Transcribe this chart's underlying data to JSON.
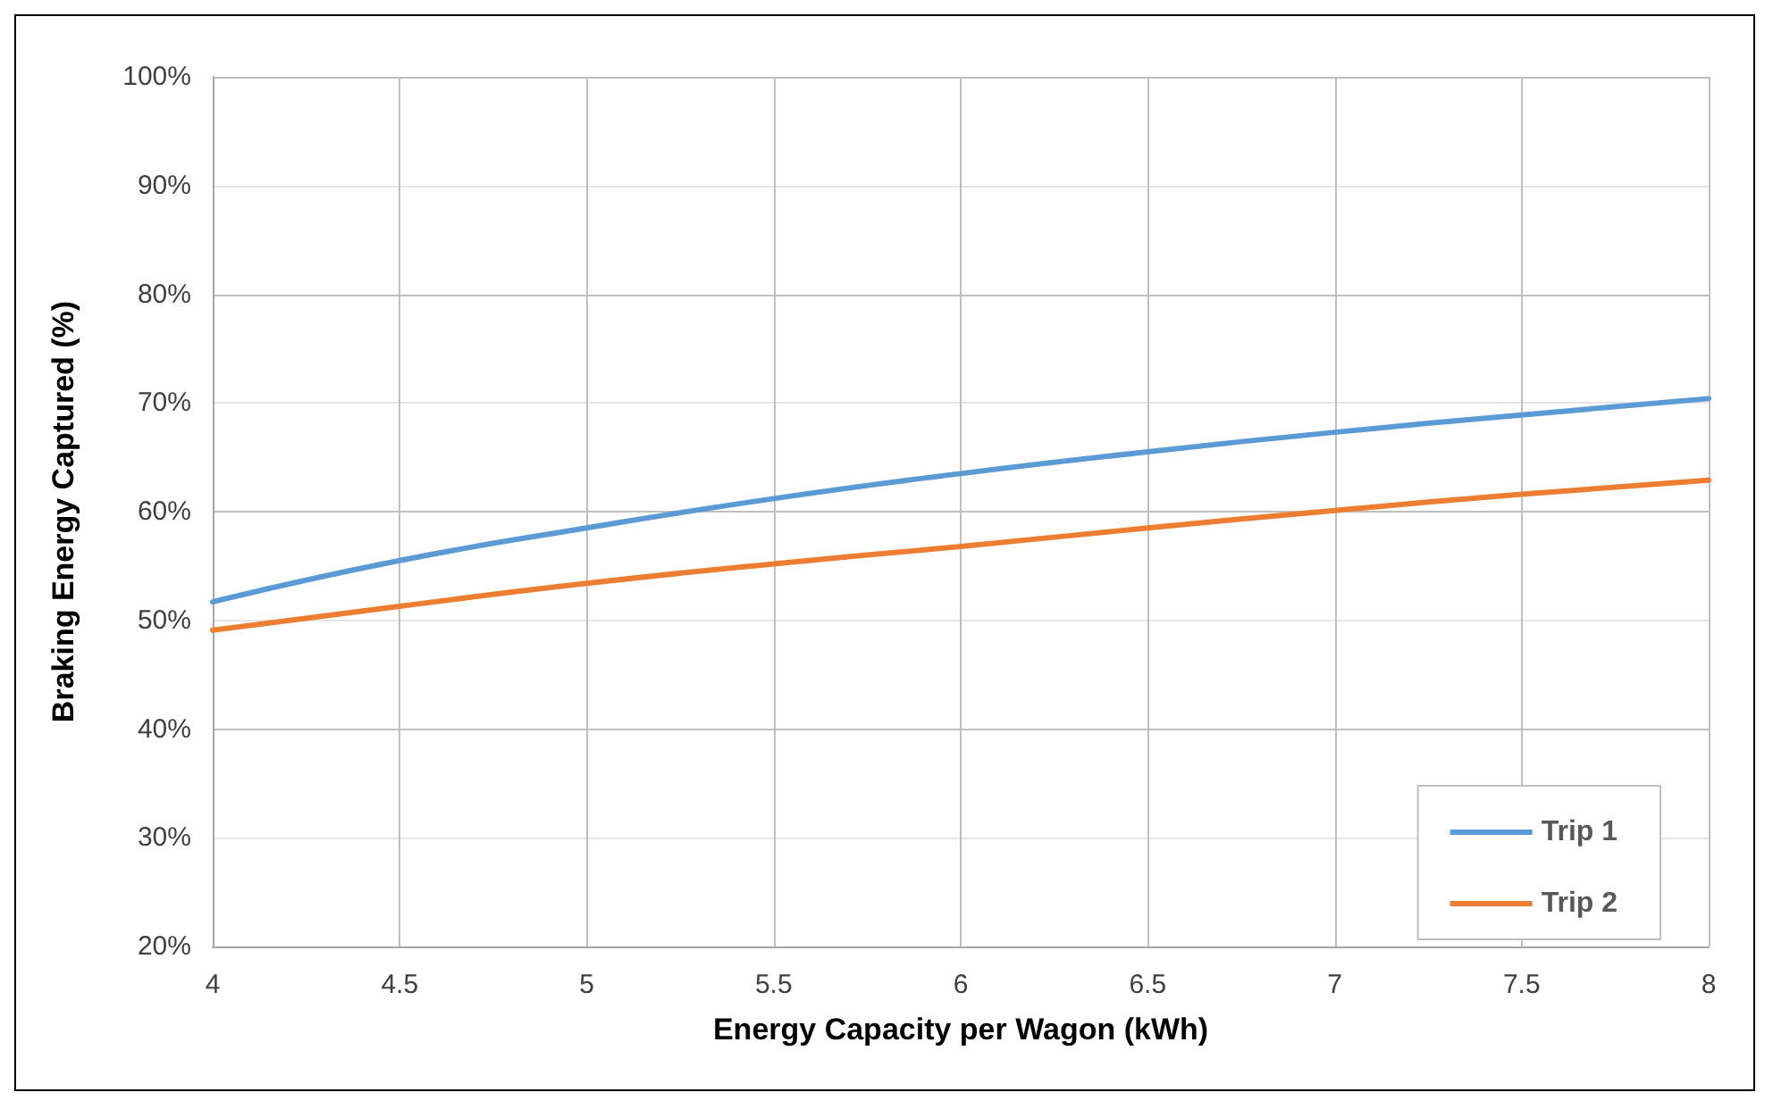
{
  "chart_data": {
    "type": "line",
    "xlabel": "Energy Capacity per Wagon (kWh)",
    "ylabel": "Braking Energy Captured (%)",
    "x": [
      4,
      4.5,
      5,
      5.5,
      6,
      6.5,
      7,
      7.5,
      8
    ],
    "series": [
      {
        "name": "Trip 1",
        "color": "#5b9bd5",
        "values": [
          51.7,
          55.5,
          58.5,
          61.2,
          63.5,
          65.5,
          67.3,
          68.9,
          70.4
        ]
      },
      {
        "name": "Trip 2",
        "color": "#ed7d31",
        "values": [
          49.1,
          51.3,
          53.4,
          55.2,
          56.8,
          58.5,
          60.1,
          61.6,
          62.9
        ]
      }
    ],
    "xlim": [
      4,
      8
    ],
    "xticks": [
      4,
      4.5,
      5,
      5.5,
      6,
      6.5,
      7,
      7.5,
      8
    ],
    "ylim": [
      20,
      100
    ],
    "yticks": [
      {
        "value": 20,
        "label": "20%"
      },
      {
        "value": 30,
        "label": "30%"
      },
      {
        "value": 40,
        "label": "40%"
      },
      {
        "value": 50,
        "label": "50%"
      },
      {
        "value": 60,
        "label": "60%"
      },
      {
        "value": 70,
        "label": "70%"
      },
      {
        "value": 80,
        "label": "80%"
      },
      {
        "value": 90,
        "label": "90%"
      },
      {
        "value": 100,
        "label": "100%"
      }
    ],
    "grid": true,
    "legend": "bottom right",
    "marker": "none",
    "line_style": "solid"
  }
}
